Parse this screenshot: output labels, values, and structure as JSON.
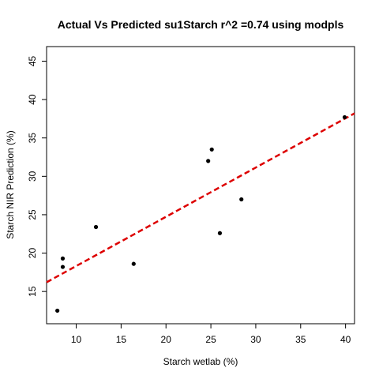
{
  "chart_data": {
    "type": "scatter",
    "title": "Actual Vs Predicted su1Starch r^2 =0.74 using modpls",
    "xlabel": "Starch wetlab (%)",
    "ylabel": "Starch NIR Prediction (%)",
    "xlim": [
      6.7,
      41.0
    ],
    "ylim": [
      10.8,
      46.9
    ],
    "x_ticks": [
      10,
      15,
      20,
      25,
      30,
      35,
      40
    ],
    "y_ticks": [
      15,
      20,
      25,
      30,
      35,
      40,
      45
    ],
    "points": [
      {
        "x": 7.9,
        "y": 12.5
      },
      {
        "x": 8.5,
        "y": 18.2
      },
      {
        "x": 8.5,
        "y": 19.3
      },
      {
        "x": 12.2,
        "y": 23.4
      },
      {
        "x": 16.4,
        "y": 18.6
      },
      {
        "x": 24.7,
        "y": 32.0
      },
      {
        "x": 25.1,
        "y": 33.5
      },
      {
        "x": 26.0,
        "y": 22.6
      },
      {
        "x": 28.4,
        "y": 27.0
      },
      {
        "x": 39.9,
        "y": 37.7
      }
    ],
    "fit_line": {
      "x1": 6.7,
      "y1": 16.2,
      "x2": 41.0,
      "y2": 38.2
    },
    "point_color": "#000000",
    "fit_line_color": "#dd0000",
    "fit_line_style": "dashed",
    "grid": false,
    "legend": "none"
  }
}
